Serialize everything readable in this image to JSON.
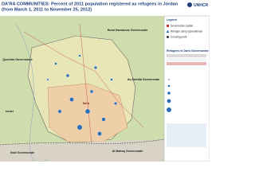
{
  "header": {
    "title_line1": "DA'RA COMMUNITIES:  Percent of 2011 population registered as refugees in Jordan",
    "title_line2": "(from March 1, 2011 to November 25, 2012)",
    "logo": "UNHCR"
  },
  "map": {
    "regions": [
      "Rural Damascus Governorate",
      "Quneitra Governorate",
      "As-Sweida Governorate",
      "Dar'a",
      "Irbid Governorate",
      "Al Mafraq Governorate",
      "Israel"
    ]
  },
  "legend": {
    "title": "Legend",
    "items": [
      "Governorate capital",
      "Refugee camp (operational)",
      "Crossing point"
    ],
    "table_title": "Refugees in Dar'a Governorate"
  }
}
